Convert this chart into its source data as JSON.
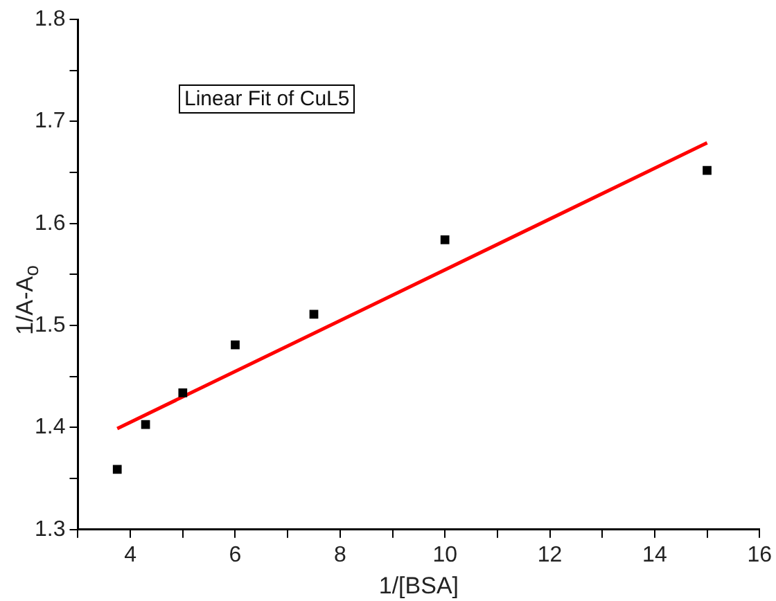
{
  "chart_data": {
    "type": "scatter",
    "xlabel": "1/[BSA]",
    "ylabel": "1/A-A$_{o}$",
    "annotations": [
      "Linear Fit of CuL5"
    ],
    "x": [
      3.75,
      4.29,
      5,
      6,
      7.5,
      10,
      15
    ],
    "series": [
      {
        "type": "scatter",
        "color": "#000000",
        "marker": "square",
        "values": [
          1.359,
          1.403,
          1.434,
          1.481,
          1.511,
          1.584,
          1.652
        ]
      },
      {
        "type": "line",
        "color": "#ff0000",
        "marker": "none",
        "x": [
          3.75,
          15
        ],
        "values": [
          1.399,
          1.679
        ]
      }
    ],
    "xlim": [
      3,
      16
    ],
    "xticks": [
      {
        "value": 3,
        "label": null
      },
      4,
      {
        "value": 5,
        "label": null
      },
      6,
      {
        "value": 7,
        "label": null
      },
      8,
      {
        "value": 9,
        "label": null
      },
      10,
      {
        "value": 11,
        "label": null
      },
      12,
      {
        "value": 13,
        "label": null
      },
      14,
      {
        "value": 15,
        "label": null
      },
      16
    ],
    "ylim": [
      1.3,
      1.8
    ],
    "yticks": [
      1.3,
      {
        "value": 1.35,
        "label": null
      },
      1.4,
      {
        "value": 1.45,
        "label": null
      },
      1.5,
      {
        "value": 1.55,
        "label": null
      },
      1.6,
      {
        "value": 1.65,
        "label": null
      },
      1.7,
      {
        "value": 1.75,
        "label": null
      },
      1.8
    ],
    "grid": false,
    "legend": false
  }
}
